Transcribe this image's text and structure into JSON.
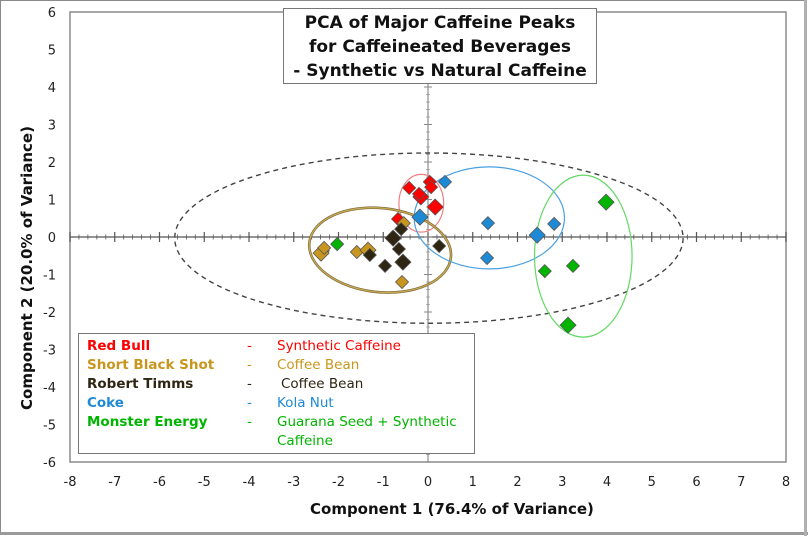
{
  "chart_data": {
    "type": "scatter",
    "title": [
      "PCA of Major Caffeine Peaks",
      "for Caffeineated Beverages",
      "- Synthetic vs Natural Caffeine"
    ],
    "xlabel": "Component 1 (76.4% of Variance)",
    "ylabel": "Component 2 (20.0% of Variance)",
    "xlim": [
      -8,
      8
    ],
    "ylim": [
      -6,
      6
    ],
    "xticks": [
      "-8",
      "-7",
      "-6",
      "-5",
      "-4",
      "-3",
      "-2",
      "-1",
      "0",
      "1",
      "2",
      "3",
      "4",
      "5",
      "6",
      "7",
      "8"
    ],
    "yticks": [
      "6",
      "5",
      "4",
      "3",
      "2",
      "1",
      "0",
      "-1",
      "-2",
      "-3",
      "-4",
      "-5",
      "-6"
    ],
    "grid": false,
    "legend_position": "bottom-left",
    "series": [
      {
        "name": "Red Bull",
        "source": "Synthetic Caffeine",
        "color": "#ff0000",
        "ellipse_color": "#f08080",
        "points": [
          [
            -0.42,
            1.31
          ],
          [
            -0.16,
            1.07
          ],
          [
            0.04,
            1.47
          ],
          [
            0.07,
            1.33
          ],
          [
            0.16,
            0.8
          ],
          [
            -0.67,
            0.48
          ],
          [
            -0.2,
            1.15
          ]
        ],
        "ellipse": {
          "cx": -0.15,
          "cy": 0.9,
          "rx": 0.5,
          "ry": 0.77
        }
      },
      {
        "name": "Short Black Shot",
        "source": "Coffee Bean",
        "color": "#c8961e",
        "ellipse_color": "#c8a850",
        "points": [
          [
            -2.35,
            -0.37
          ],
          [
            -2.39,
            -0.43
          ],
          [
            -2.32,
            -0.29
          ],
          [
            -1.59,
            -0.4
          ],
          [
            -1.34,
            -0.35
          ],
          [
            -0.58,
            -1.2
          ],
          [
            -0.54,
            0.37
          ]
        ],
        "ellipse": {
          "cx": -1.07,
          "cy": -0.35,
          "rx": 1.59,
          "ry": 1.12
        }
      },
      {
        "name": "Robert Timms",
        "source": "Coffee Bean",
        "color": "#2e2612",
        "ellipse_color": "#2e2612",
        "points": [
          [
            -1.3,
            -0.48
          ],
          [
            -0.78,
            -0.03
          ],
          [
            -0.65,
            -0.32
          ],
          [
            -0.96,
            -0.77
          ],
          [
            -0.56,
            -0.67
          ],
          [
            0.25,
            -0.24
          ],
          [
            -0.6,
            0.21
          ]
        ],
        "ellipse": null
      },
      {
        "name": "Coke",
        "source": "Kola Nut",
        "color": "#1e8ad6",
        "ellipse_color": "#4aa0e0",
        "points": [
          [
            0.38,
            1.47
          ],
          [
            -0.18,
            0.53
          ],
          [
            1.34,
            0.37
          ],
          [
            1.32,
            -0.56
          ],
          [
            2.44,
            0.05
          ],
          [
            2.82,
            0.35
          ]
        ],
        "ellipse": {
          "cx": 1.37,
          "cy": 0.51,
          "rx": 1.68,
          "ry": 1.36
        }
      },
      {
        "name": "Monster Energy",
        "source": "Guarana Seed + Synthetic Caffeine",
        "source_lines": [
          "Guarana Seed + Synthetic",
          "Caffeine"
        ],
        "color": "#00b400",
        "ellipse_color": "#66d866",
        "points": [
          [
            -2.03,
            -0.19
          ],
          [
            3.98,
            0.93
          ],
          [
            3.24,
            -0.77
          ],
          [
            2.61,
            -0.91
          ],
          [
            3.13,
            -2.35
          ]
        ],
        "ellipse": {
          "cx": 3.47,
          "cy": -0.51,
          "rx": 1.09,
          "ry": 2.16
        }
      }
    ],
    "overall_ellipse": {
      "cx": 0.02,
      "cy": -0.03,
      "rx": 5.68,
      "ry": 2.27,
      "color": "#444444",
      "style": "dashed"
    }
  },
  "legend": {
    "dash": "-"
  }
}
